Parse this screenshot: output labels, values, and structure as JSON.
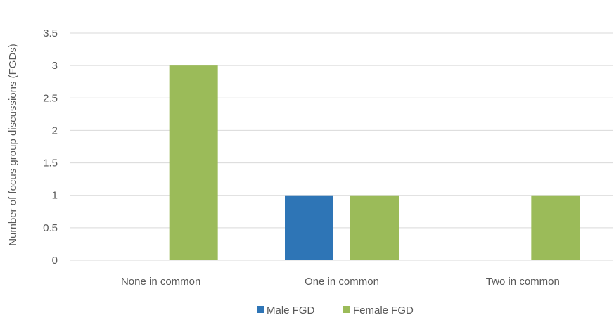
{
  "chart_data": {
    "type": "bar",
    "categories": [
      "None in common",
      "One in common",
      "Two in common"
    ],
    "series": [
      {
        "name": "Male FGD",
        "values": [
          0,
          1,
          0
        ],
        "color": "#2E75B6"
      },
      {
        "name": "Female FGD",
        "values": [
          3,
          1,
          1
        ],
        "color": "#9BBB59"
      }
    ],
    "ylabel": "Number of focus group discussions (FGDs)",
    "ylim": [
      0,
      3.5
    ],
    "yticks": [
      "0",
      "0.5",
      "1",
      "1.5",
      "2",
      "2.5",
      "3",
      "3.5"
    ],
    "grid": true,
    "legend_position": "bottom"
  }
}
